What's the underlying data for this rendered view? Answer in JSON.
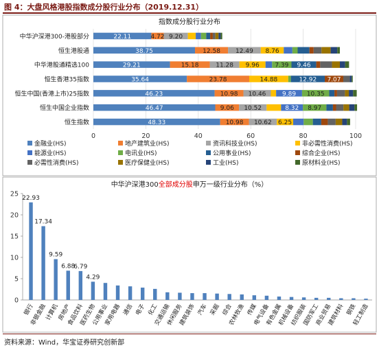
{
  "figure": {
    "title": "图 4：大盘风格港股指数成分股行业分布（2019.12.31）",
    "source": "资料来源：Wind，华宝证券研究创新部"
  },
  "chart_data": [
    {
      "type": "bar",
      "orientation": "horizontal",
      "stacked": true,
      "title": "指数成分股行业分布",
      "categories": [
        "中华沪深港300-港股部分",
        "恒生港股通",
        "中华港股通精选100",
        "恒生香港35指数",
        "恒生中国(香港上市)25指数",
        "恒生中国企业指数",
        "恒生指数"
      ],
      "xlim": [
        0,
        100
      ],
      "xticks": [
        0,
        20,
        40,
        60,
        80,
        100
      ],
      "legend_position": "bottom",
      "series": [
        {
          "name": "金融业(HS)",
          "color": "#4f81bd",
          "values": [
            22.11,
            38.75,
            29.21,
            35.64,
            46.23,
            46.47,
            48.33
          ],
          "labels": [
            "22.11",
            "38.75",
            "29.21",
            "35.64",
            "46.23",
            "46.47",
            "48.33"
          ]
        },
        {
          "name": "地产建筑业(HS)",
          "color": "#f07e32",
          "values": [
            4.72,
            12.58,
            15.18,
            23.78,
            10.98,
            9.06,
            10.98
          ],
          "labels": [
            "4.72",
            "12.58",
            "15.18",
            "23.78",
            "10.98",
            "9.06",
            "10.98"
          ]
        },
        {
          "name": "资讯科技业(HS)",
          "color": "#a5a5a5",
          "values": [
            9.2,
            12.49,
            11.28,
            0,
            10.46,
            10.52,
            10.62
          ],
          "labels": [
            "9.20",
            "12.49",
            "11.28",
            "",
            "10.46",
            "10.52",
            "10.62"
          ]
        },
        {
          "name": "非必需性消费(HS)",
          "color": "#ffc000",
          "values": [
            3.0,
            8.76,
            9.96,
            14.88,
            2.0,
            5.5,
            6.25
          ],
          "labels": [
            "",
            "8.76",
            "9.96",
            "14.88",
            "",
            "",
            "6.25"
          ]
        },
        {
          "name": "能源业(HS)",
          "color": "#4472c4",
          "values": [
            2.0,
            3.3,
            2.5,
            0,
            9.89,
            8.32,
            4.0
          ],
          "labels": [
            "",
            "",
            "",
            "",
            "9.89",
            "8.32",
            ""
          ]
        },
        {
          "name": "电讯业(HS)",
          "color": "#70ad47",
          "values": [
            2.0,
            2.0,
            7.39,
            1.0,
            10.35,
            8.97,
            3.5
          ],
          "labels": [
            "",
            "",
            "7.39",
            "",
            "10.35",
            "8.97",
            ""
          ]
        },
        {
          "name": "公用事业(HS)",
          "color": "#255e91",
          "values": [
            1.5,
            4.5,
            9.46,
            12.92,
            2.0,
            2.5,
            3.2
          ],
          "labels": [
            "",
            "",
            "9.46",
            "12.92",
            "",
            "",
            ""
          ]
        },
        {
          "name": "综合企业(HS)",
          "color": "#9e480e",
          "values": [
            1.0,
            1.6,
            1.5,
            7.07,
            1.0,
            1.2,
            2.5
          ],
          "labels": [
            "",
            "",
            "",
            "7.07",
            "",
            "",
            ""
          ]
        },
        {
          "name": "必需性消费(HS)",
          "color": "#636363",
          "values": [
            1.0,
            3.0,
            4.5,
            2.5,
            3.0,
            2.8,
            3.0
          ],
          "labels": [
            "",
            "",
            "",
            "",
            "",
            "",
            ""
          ]
        },
        {
          "name": "医疗保健业(HS)",
          "color": "#997300",
          "values": [
            1.2,
            3.5,
            3.0,
            0,
            1.5,
            2.2,
            2.5
          ],
          "labels": [
            "",
            "",
            "",
            "",
            "",
            "",
            ""
          ]
        },
        {
          "name": "工业(HS)",
          "color": "#264478",
          "values": [
            0.8,
            2.5,
            2.0,
            0.7,
            1.6,
            2.0,
            1.8
          ],
          "labels": [
            "",
            "",
            "",
            "",
            "",
            "",
            ""
          ]
        },
        {
          "name": "原材料业(HS)",
          "color": "#43682b",
          "values": [
            0.6,
            1.0,
            1.5,
            0.4,
            1.4,
            1.0,
            1.2
          ],
          "labels": [
            "",
            "",
            "",
            "",
            "",
            "",
            ""
          ]
        }
      ]
    },
    {
      "type": "bar",
      "title_parts": [
        "中华沪深港300",
        "全部成分股",
        "申万一级行业分布（%）"
      ],
      "title_colors": [
        "#222222",
        "#e00000",
        "#222222"
      ],
      "categories": [
        "银行",
        "非银金融",
        "计算机",
        "房地产",
        "食品饮料",
        "医药生物",
        "公用事业",
        "家用电器",
        "通信",
        "电子",
        "化工",
        "交通运输",
        "休闲服务",
        "建筑装饰",
        "汽车",
        "采掘",
        "综合",
        "农林牧渔",
        "传媒",
        "电气设备",
        "有色金属",
        "机械设备",
        "纺织服装",
        "国防军工",
        "商业贸易",
        "建筑材料",
        "钢铁",
        "轻工制造"
      ],
      "values": [
        22.93,
        17.34,
        9.59,
        6.88,
        6.79,
        4.29,
        4.0,
        3.4,
        3.2,
        2.9,
        2.6,
        1.8,
        1.7,
        1.6,
        1.6,
        1.5,
        1.4,
        1.3,
        1.1,
        1.0,
        0.8,
        0.7,
        0.6,
        0.5,
        0.5,
        0.4,
        0.4,
        0.3
      ],
      "value_labels": [
        "22.93",
        "17.34",
        "9.59",
        "6.88",
        "6.79",
        "4.29",
        "",
        "",
        "",
        "",
        "",
        "",
        "",
        "",
        "",
        "",
        "",
        "",
        "",
        "",
        "",
        "",
        "",
        "",
        "",
        "",
        "",
        ""
      ],
      "ylim": [
        0,
        25
      ],
      "yticks": [
        0,
        5,
        10,
        15,
        20,
        25
      ],
      "color": "#4f81bd"
    }
  ]
}
